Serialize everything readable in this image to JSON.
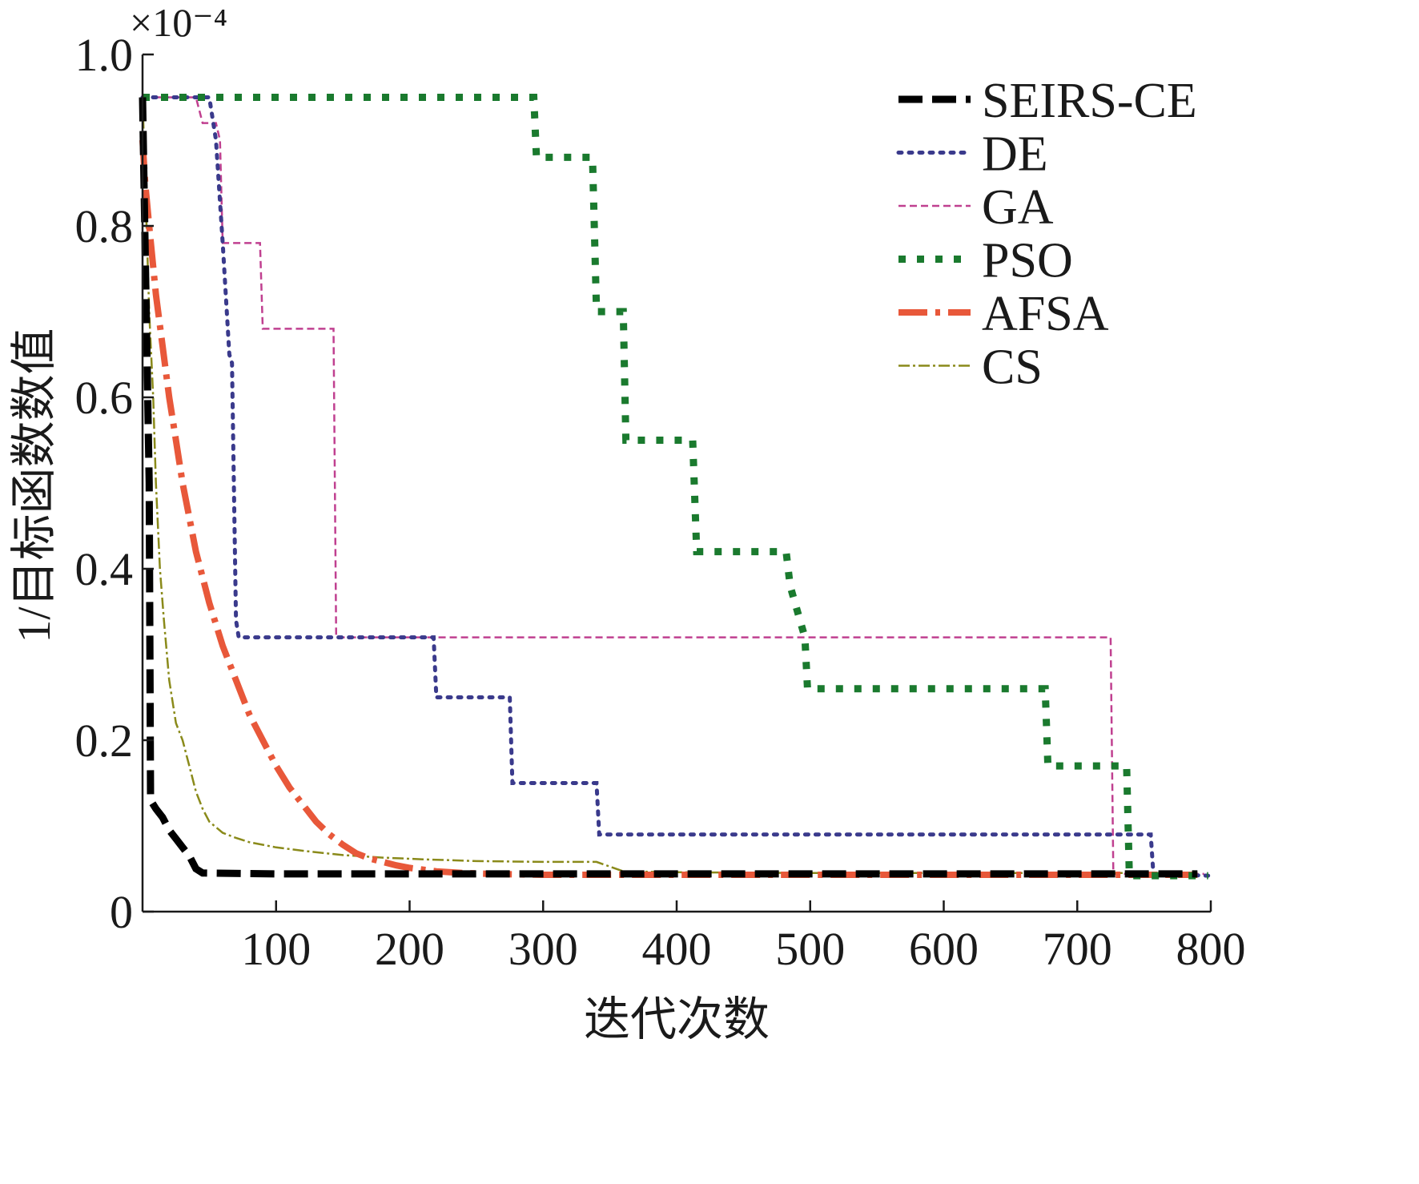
{
  "chart_data": {
    "type": "line",
    "title": "",
    "xlabel": "迭代次数",
    "ylabel": "1/目标函数数值",
    "y_exponent": "×10⁻⁴",
    "xlim": [
      0,
      800
    ],
    "ylim": [
      0,
      1.0
    ],
    "x_ticks": [
      100,
      200,
      300,
      400,
      500,
      600,
      700,
      800
    ],
    "x_tick_labels": [
      "100",
      "200",
      "300",
      "400",
      "500",
      "600",
      "700",
      "800"
    ],
    "y_ticks": [
      0,
      0.2,
      0.4,
      0.6,
      0.8,
      1.0
    ],
    "y_tick_labels": [
      "0",
      "0.2",
      "0.4",
      "0.6",
      "0.8",
      "1.0"
    ],
    "grid": false,
    "legend_position": "top-right",
    "series": [
      {
        "name": "SEIRS-CE",
        "color": "#000000",
        "x": [
          0,
          5,
          6,
          10,
          15,
          20,
          25,
          30,
          35,
          40,
          45,
          100,
          200,
          400,
          600,
          700,
          790
        ],
        "y": [
          0.95,
          0.5,
          0.13,
          0.12,
          0.11,
          0.095,
          0.085,
          0.075,
          0.065,
          0.05,
          0.045,
          0.044,
          0.044,
          0.044,
          0.044,
          0.044,
          0.044
        ]
      },
      {
        "name": "DE",
        "color": "#3a3a8c",
        "x": [
          0,
          50,
          51,
          52,
          55,
          60,
          65,
          67,
          70,
          72,
          218,
          220,
          275,
          277,
          340,
          342,
          755,
          757,
          798
        ],
        "y": [
          0.95,
          0.95,
          0.94,
          0.93,
          0.9,
          0.78,
          0.65,
          0.64,
          0.34,
          0.32,
          0.32,
          0.25,
          0.25,
          0.15,
          0.15,
          0.09,
          0.09,
          0.044,
          0.042
        ]
      },
      {
        "name": "GA",
        "color": "#c04090",
        "x": [
          0,
          40,
          45,
          55,
          58,
          60,
          88,
          90,
          143,
          145,
          725,
          727,
          795
        ],
        "y": [
          0.95,
          0.95,
          0.92,
          0.92,
          0.9,
          0.78,
          0.78,
          0.68,
          0.68,
          0.32,
          0.32,
          0.044,
          0.044
        ]
      },
      {
        "name": "PSO",
        "color": "#1a7a2e",
        "x": [
          0,
          293,
          295,
          337,
          340,
          360,
          362,
          412,
          415,
          482,
          485,
          496,
          498,
          676,
          678,
          737,
          739,
          798
        ],
        "y": [
          0.95,
          0.95,
          0.88,
          0.88,
          0.7,
          0.7,
          0.55,
          0.55,
          0.42,
          0.42,
          0.38,
          0.32,
          0.26,
          0.26,
          0.17,
          0.17,
          0.042,
          0.042
        ]
      },
      {
        "name": "AFSA",
        "color": "#e8583a",
        "x": [
          0,
          2,
          5,
          10,
          15,
          20,
          25,
          30,
          40,
          50,
          60,
          70,
          80,
          90,
          100,
          110,
          120,
          130,
          140,
          150,
          160,
          170,
          180,
          190,
          200,
          210,
          220,
          240,
          260,
          300,
          400,
          500,
          600,
          700,
          790
        ],
        "y": [
          0.9,
          0.85,
          0.8,
          0.72,
          0.66,
          0.6,
          0.55,
          0.5,
          0.42,
          0.36,
          0.31,
          0.27,
          0.23,
          0.2,
          0.17,
          0.145,
          0.125,
          0.105,
          0.09,
          0.078,
          0.068,
          0.062,
          0.058,
          0.054,
          0.051,
          0.049,
          0.047,
          0.045,
          0.044,
          0.043,
          0.043,
          0.043,
          0.043,
          0.043,
          0.043
        ]
      },
      {
        "name": "CS",
        "color": "#8a8a1a",
        "x": [
          0,
          3,
          5,
          8,
          10,
          13,
          16,
          20,
          25,
          30,
          35,
          40,
          45,
          50,
          60,
          70,
          80,
          100,
          120,
          150,
          180,
          210,
          250,
          300,
          340,
          360,
          400,
          500,
          600,
          700,
          790
        ],
        "y": [
          0.95,
          0.8,
          0.7,
          0.6,
          0.5,
          0.4,
          0.34,
          0.27,
          0.22,
          0.2,
          0.17,
          0.14,
          0.12,
          0.105,
          0.092,
          0.086,
          0.081,
          0.075,
          0.071,
          0.066,
          0.063,
          0.061,
          0.059,
          0.058,
          0.058,
          0.047,
          0.046,
          0.045,
          0.045,
          0.045,
          0.045
        ]
      }
    ]
  }
}
